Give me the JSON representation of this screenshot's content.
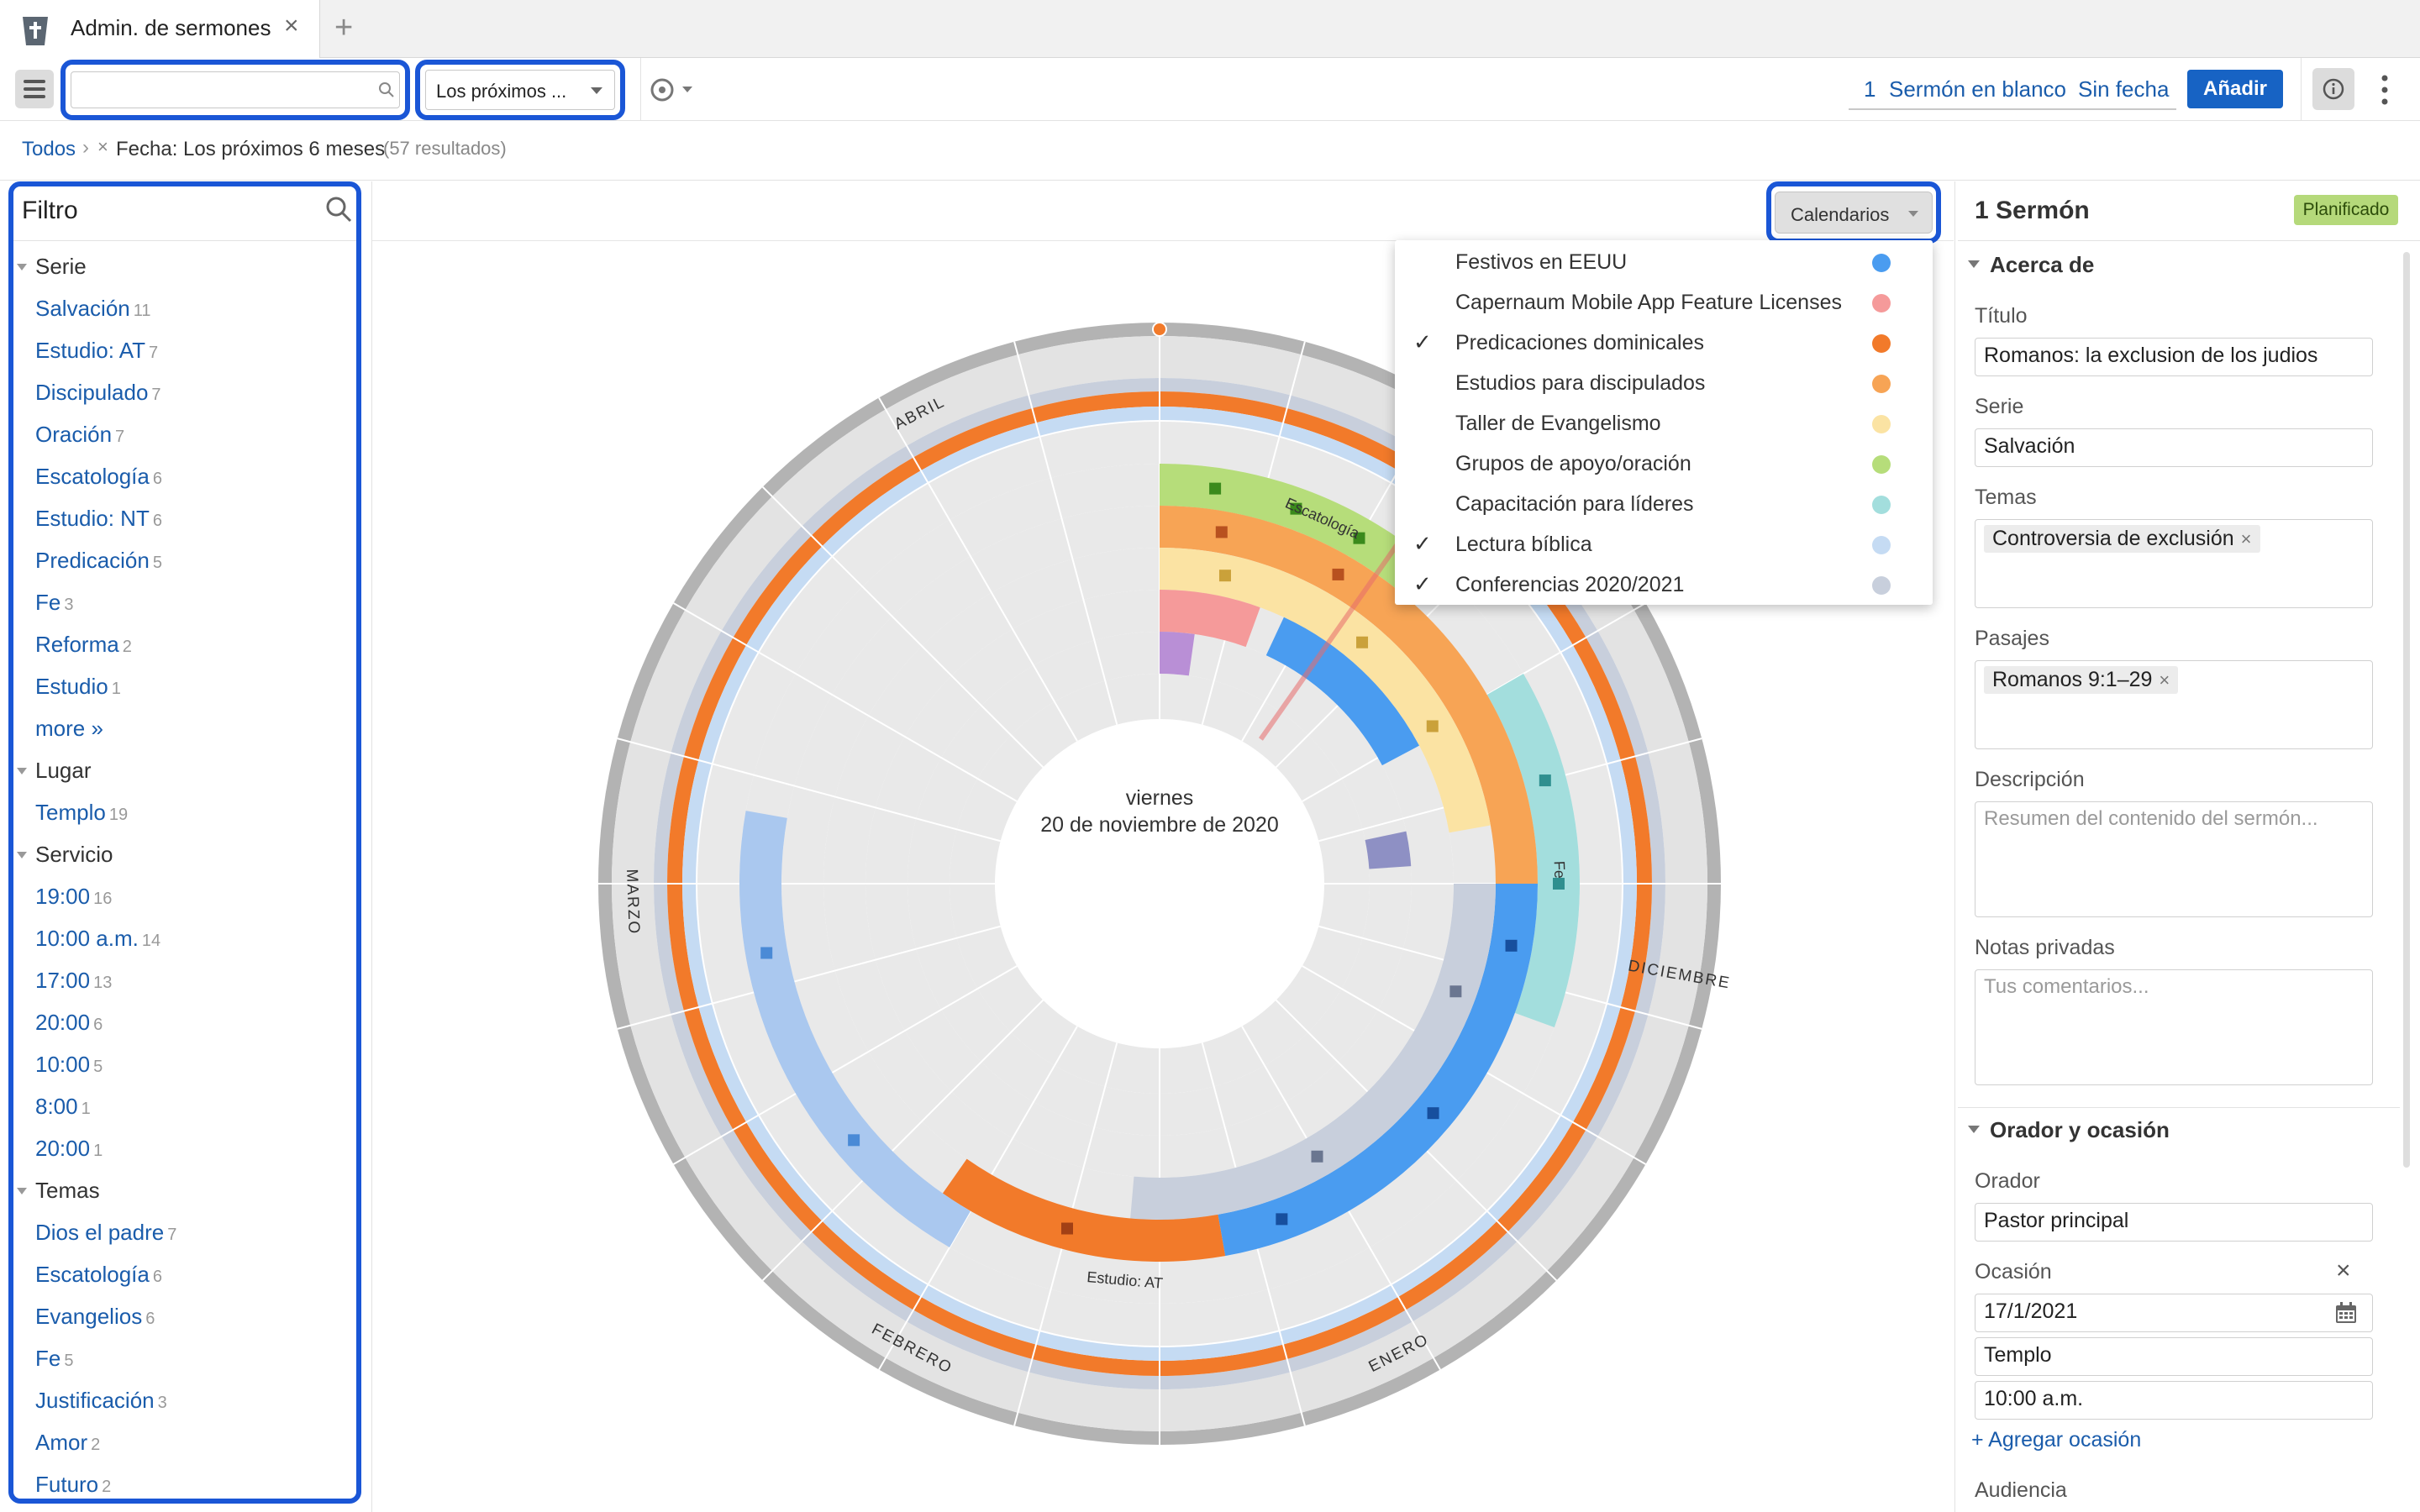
{
  "tab": {
    "title": "Admin. de sermones",
    "close": "×",
    "new": "+"
  },
  "toolbar": {
    "search_value": "",
    "range_label": "Los próximos ...",
    "blank_count": "1",
    "blank_label": "Sermón en blanco",
    "nodate_label": "Sin fecha",
    "add_label": "Añadir"
  },
  "breadcrumb": {
    "all": "Todos",
    "sep": "›",
    "remove": "×",
    "filter": "Fecha: Los próximos 6 meses",
    "count": "(57 resultados)"
  },
  "filter": {
    "title": "Filtro",
    "groups": [
      {
        "label": "Serie",
        "items": [
          {
            "label": "Salvación",
            "count": "11"
          },
          {
            "label": "Estudio: AT",
            "count": "7"
          },
          {
            "label": "Discipulado",
            "count": "7"
          },
          {
            "label": "Oración",
            "count": "7"
          },
          {
            "label": "Escatología",
            "count": "6"
          },
          {
            "label": "Estudio: NT",
            "count": "6"
          },
          {
            "label": "Predicación",
            "count": "5"
          },
          {
            "label": "Fe",
            "count": "3"
          },
          {
            "label": "Reforma",
            "count": "2"
          },
          {
            "label": "Estudio",
            "count": "1"
          },
          {
            "label": "more »",
            "count": ""
          }
        ]
      },
      {
        "label": "Lugar",
        "items": [
          {
            "label": "Templo",
            "count": "19"
          }
        ]
      },
      {
        "label": "Servicio",
        "items": [
          {
            "label": "19:00",
            "count": "16"
          },
          {
            "label": "10:00 a.m.",
            "count": "14"
          },
          {
            "label": "17:00",
            "count": "13"
          },
          {
            "label": "20:00",
            "count": "6"
          },
          {
            "label": "10:00",
            "count": "5"
          },
          {
            "label": "8:00",
            "count": "1"
          },
          {
            "label": "20:00",
            "count": "1"
          }
        ]
      },
      {
        "label": "Temas",
        "items": [
          {
            "label": "Dios el padre",
            "count": "7"
          },
          {
            "label": "Escatología",
            "count": "6"
          },
          {
            "label": "Evangelios",
            "count": "6"
          },
          {
            "label": "Fe",
            "count": "5"
          },
          {
            "label": "Justificación",
            "count": "3"
          },
          {
            "label": "Amor",
            "count": "2"
          },
          {
            "label": "Futuro",
            "count": "2"
          }
        ]
      }
    ]
  },
  "calendars": {
    "button_label": "Calendarios",
    "items": [
      {
        "label": "Festivos en EEUU",
        "checked": false,
        "color": "#4a9cf0"
      },
      {
        "label": "Capernaum Mobile App Feature Licenses",
        "checked": false,
        "color": "#f59a9a"
      },
      {
        "label": "Predicaciones dominicales",
        "checked": true,
        "color": "#f27a2a"
      },
      {
        "label": "Estudios para discipulados",
        "checked": false,
        "color": "#f7a455"
      },
      {
        "label": "Taller de Evangelismo",
        "checked": false,
        "color": "#fbe3a3"
      },
      {
        "label": "Grupos de apoyo/oración",
        "checked": false,
        "color": "#b6dd7a"
      },
      {
        "label": "Capacitación para líderes",
        "checked": false,
        "color": "#a3dedd"
      },
      {
        "label": "Lectura bíblica",
        "checked": true,
        "color": "#c5dbf3"
      },
      {
        "label": "Conferencias 2020/2021",
        "checked": true,
        "color": "#c8cfdc"
      }
    ],
    "check_glyph": "✓"
  },
  "radial": {
    "center_day": "viernes",
    "center_date": "20 de noviembre de 2020",
    "months": [
      "ABRIL",
      "MARZO",
      "FEBRERO",
      "ENERO",
      "DICIEMBRE"
    ],
    "arc_labels": [
      "Escatología",
      "Fe",
      "Estudio: AT"
    ]
  },
  "detail": {
    "count_title": "1 Sermón",
    "status": "Planificado",
    "about_section": "Acerca de",
    "title_label": "Título",
    "title_value": "Romanos: la exclusion de los judios",
    "series_label": "Serie",
    "series_value": "Salvación",
    "topics_label": "Temas",
    "topics": [
      "Controversia de exclusión"
    ],
    "passages_label": "Pasajes",
    "passages": [
      "Romanos 9:1–29"
    ],
    "description_label": "Descripción",
    "description_placeholder": "Resumen del contenido del sermón...",
    "notes_label": "Notas privadas",
    "notes_placeholder": "Tus comentarios...",
    "speaker_section": "Orador y ocasión",
    "speaker_label": "Orador",
    "speaker_value": "Pastor principal",
    "occasion_label": "Ocasión",
    "occasion_date": "17/1/2021",
    "occasion_place": "Templo",
    "occasion_time": "10:00 a.m.",
    "add_occasion": "+ Agregar ocasión",
    "audience_label": "Audiencia"
  }
}
